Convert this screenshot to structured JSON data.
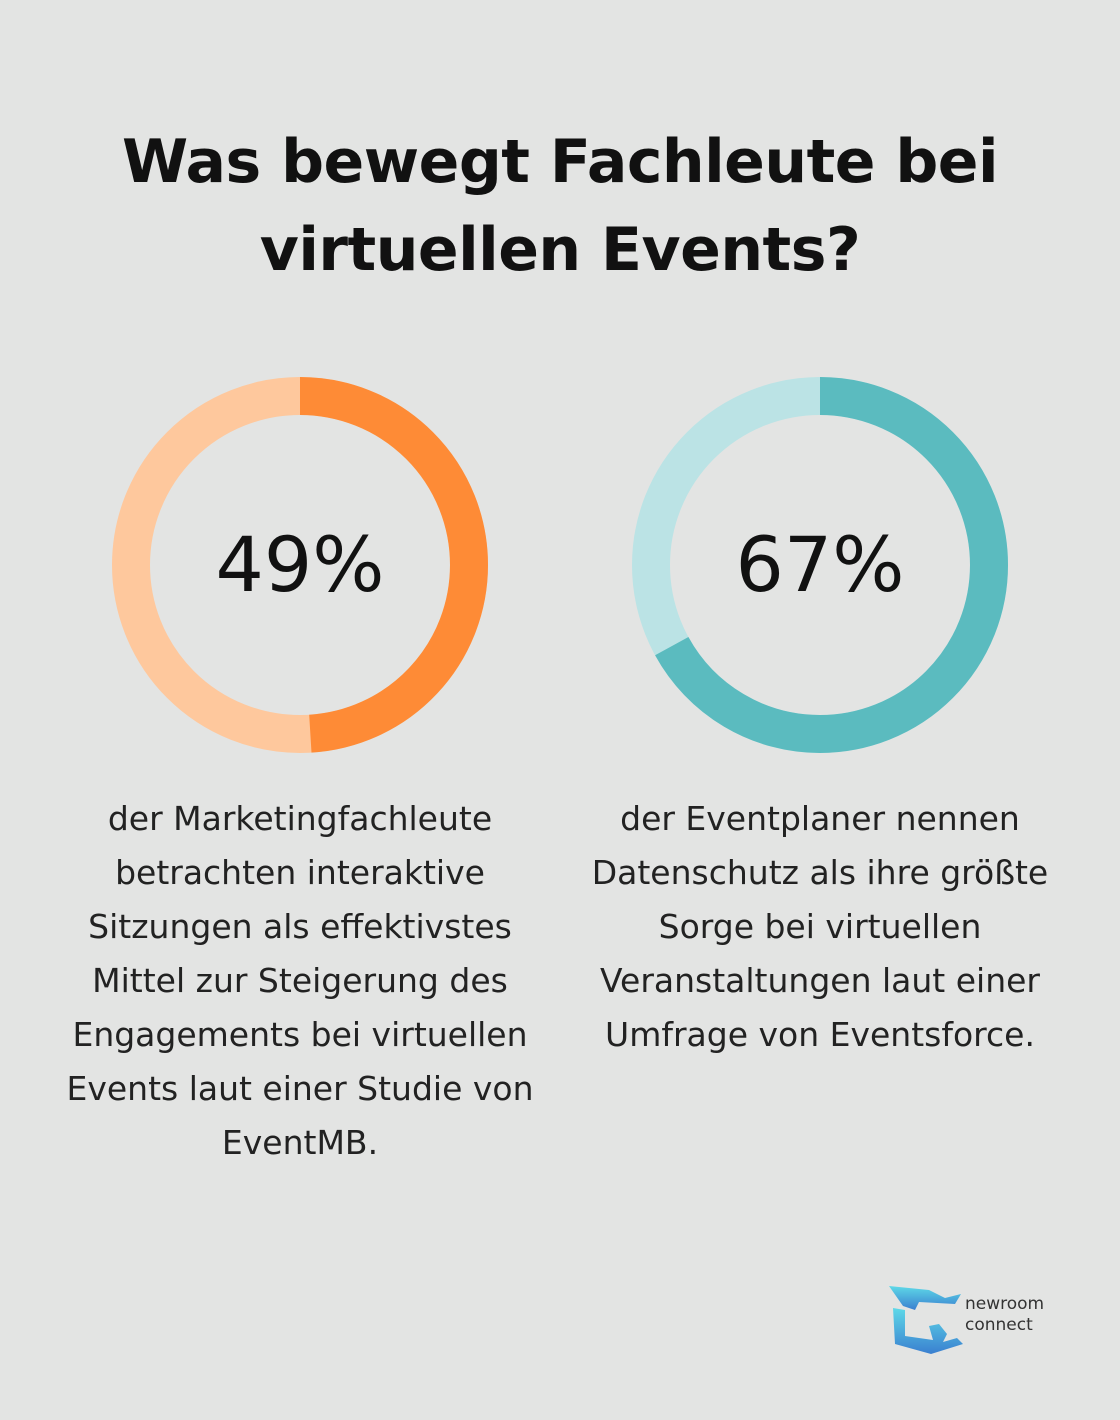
{
  "title": "Was bewegt Fachleute bei virtuellen Events?",
  "chart_data": [
    {
      "type": "pie",
      "value": 49,
      "label": "49%",
      "description": "der Marketingfachleute betrachten interaktive Sitzungen als effektivstes Mittel zur Steigerung des Engagements bei virtuellen Events laut einer Studie von EventMB.",
      "colors": {
        "fill": "#fe8b36",
        "track": "#fec89d"
      }
    },
    {
      "type": "pie",
      "value": 67,
      "label": "67%",
      "description": "der Eventplaner nennen Datenschutz als ihre größte Sorge bei virtuellen Veranstaltungen laut einer Umfrage von Eventsforce.",
      "colors": {
        "fill": "#5bbbbf",
        "track": "#bbe3e5"
      }
    }
  ],
  "brand": {
    "line1": "newroom",
    "line2": "connect",
    "icon": "newroom-connect-logo",
    "colors": {
      "top": "#5ed9e8",
      "bottom": "#3a7fd0"
    }
  }
}
